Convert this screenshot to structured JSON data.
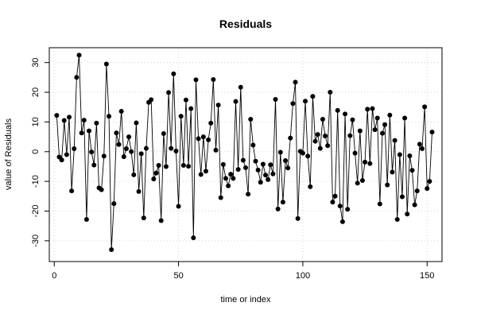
{
  "chart_data": {
    "type": "line",
    "title": "Residuals",
    "xlabel": "time or index",
    "ylabel": "value of Residuals",
    "xlim": [
      -2,
      156
    ],
    "ylim": [
      -37,
      35
    ],
    "x_ticks": [
      0,
      50,
      100,
      150
    ],
    "y_ticks": [
      -30,
      -20,
      -10,
      0,
      10,
      20,
      30
    ],
    "grid": true,
    "series": [
      {
        "x": [
          1,
          2,
          3,
          4,
          5,
          6,
          7,
          8,
          9,
          10,
          11,
          12,
          13,
          14,
          15,
          16,
          17,
          18,
          19,
          20,
          21,
          22,
          23,
          24,
          25,
          26,
          27,
          28,
          29,
          30,
          31,
          32,
          33,
          34,
          35,
          36,
          37,
          38,
          39,
          40,
          41,
          42,
          43,
          44,
          45,
          46,
          47,
          48,
          49,
          50,
          51,
          52,
          53,
          54,
          55,
          56,
          57,
          58,
          59,
          60,
          61,
          62,
          63,
          64,
          65,
          66,
          67,
          68,
          69,
          70,
          71,
          72,
          73,
          74,
          75,
          76,
          77,
          78,
          79,
          80,
          81,
          82,
          83,
          84,
          85,
          86,
          87,
          88,
          89,
          90,
          91,
          92,
          93,
          94,
          95,
          96,
          97,
          98,
          99,
          100,
          101,
          102,
          103,
          104,
          105,
          106,
          107,
          108,
          109,
          110,
          111,
          112,
          113,
          114,
          115,
          116,
          117,
          118,
          119,
          120,
          121,
          122,
          123,
          124,
          125,
          126,
          127,
          128,
          129,
          130,
          131,
          132,
          133,
          134,
          135,
          136,
          137,
          138,
          139,
          140,
          141,
          142,
          143,
          144,
          145,
          146,
          147,
          148,
          149,
          150,
          151,
          152
        ],
        "values": [
          12.2,
          -1.8,
          -2.8,
          10.5,
          -1,
          11.6,
          -13.2,
          1,
          25,
          32.5,
          6.3,
          10.6,
          -22.8,
          7,
          -0.1,
          -4.5,
          9.6,
          -12.2,
          -12.8,
          -1.5,
          29.5,
          11.9,
          -33,
          -17.5,
          6.3,
          2.4,
          13.6,
          -1.7,
          1,
          5,
          0,
          -7.8,
          9.7,
          -13.4,
          -0.7,
          -22.3,
          1.1,
          16.6,
          17.5,
          -9.2,
          -7.2,
          -4.6,
          -23.2,
          6.1,
          -5,
          19.9,
          1.1,
          26.2,
          0.2,
          -18.4,
          11.9,
          -4.6,
          17.4,
          -4.9,
          14.5,
          -29,
          24.2,
          4.4,
          -7.7,
          5,
          -6.6,
          4,
          9.6,
          24.3,
          0.5,
          15.7,
          -15.5,
          -4.3,
          -9,
          -11.5,
          -7.6,
          -9,
          16.9,
          -6,
          21.7,
          -2.9,
          -5.4,
          -14.3,
          10.9,
          2.2,
          -3.2,
          -6.2,
          -10.3,
          -4.2,
          -7.9,
          -9.4,
          -4.4,
          -7.5,
          17.6,
          -19.3,
          -0.2,
          -17,
          -3,
          -5.5,
          4.6,
          16.2,
          23.4,
          -22.5,
          0.1,
          -0.5,
          17,
          -1.5,
          -11.8,
          18.6,
          3.5,
          5.8,
          1.1,
          10.9,
          5.3,
          2,
          20,
          -17,
          -15,
          13.9,
          -18.3,
          -23.6,
          12.7,
          -19.4,
          5.4,
          10.7,
          -0.5,
          -10.6,
          7,
          -9.7,
          -3.5,
          14.3,
          -4,
          14.5,
          7.4,
          11.3,
          -17.6,
          6.2,
          9.1,
          -11.2,
          12.3,
          -6.9,
          3.8,
          -22.8,
          -1,
          -15.2,
          11.3,
          -21,
          -1.4,
          -6.3,
          -17.9,
          -13.2,
          2.5,
          1,
          15.1,
          -12.4,
          -10,
          6.6
        ]
      }
    ]
  }
}
